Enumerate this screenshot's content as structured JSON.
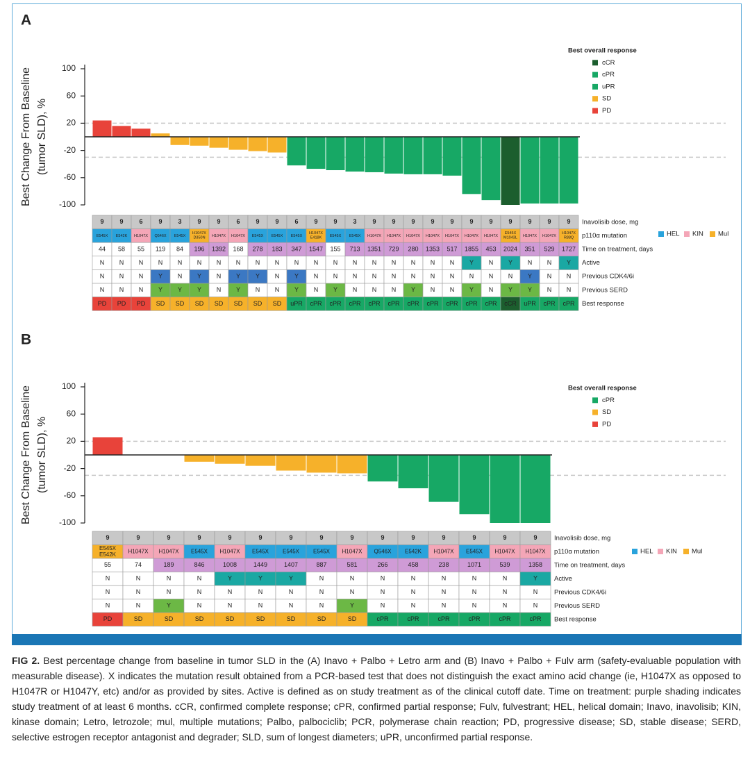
{
  "chart_data": [
    {
      "type": "bar",
      "panel": "A",
      "ylabel": [
        "Best Change From Baseline",
        "(tumor SLD), %"
      ],
      "values": [
        24,
        16,
        12,
        5,
        -12,
        -13,
        -16,
        -19,
        -21,
        -23,
        -42,
        -47,
        -49,
        -51,
        -52,
        -54,
        -55,
        -55,
        -57,
        -84,
        -93,
        -100,
        -98,
        -98,
        -98
      ],
      "ylim": [
        -100,
        100
      ],
      "yticks": [
        100,
        60,
        20,
        -20,
        -60,
        -100
      ],
      "reference_lines": [
        20,
        -30
      ],
      "reference_color": "#c8c8c8",
      "legend": {
        "title": "Best overall response",
        "items": [
          {
            "name": "cCR",
            "color": "#1c5e2e"
          },
          {
            "name": "cPR",
            "color": "#17a865"
          },
          {
            "name": "uPR",
            "color": "#17a865"
          },
          {
            "name": "SD",
            "color": "#f6b12a"
          },
          {
            "name": "PD",
            "color": "#e8433a"
          }
        ]
      },
      "mutation_legend": [
        {
          "name": "HEL",
          "color": "#29a3dc"
        },
        {
          "name": "KIN",
          "color": "#f4a6b7"
        },
        {
          "name": "Mul",
          "color": "#f6b12a"
        }
      ],
      "table": {
        "rows": [
          {
            "label": "Inavolisib dose, mg",
            "fill": "#c8c8c8",
            "cells": [
              9,
              9,
              6,
              9,
              3,
              9,
              9,
              6,
              9,
              9,
              6,
              9,
              9,
              3,
              9,
              9,
              9,
              9,
              9,
              9,
              9,
              9,
              9,
              9,
              9
            ]
          },
          {
            "label": "p110α mutation",
            "cells": [
              "E545X",
              "E542K",
              "H1047X",
              "Q546X",
              "E545X",
              "H1047X D350N",
              "H1047X",
              "H1047X",
              "E545X",
              "E545X",
              "E545X",
              "H1047X E418K",
              "E545X",
              "E545X",
              "H1047X",
              "H1047X",
              "H1047X",
              "H1047X",
              "H1047X",
              "H1047X",
              "H1047X",
              "E545X M1043L",
              "H1047X",
              "H1047X",
              "H1047X R88Q"
            ],
            "colors": [
              "#29a3dc",
              "#29a3dc",
              "#f4a6b7",
              "#29a3dc",
              "#29a3dc",
              "#f6b12a",
              "#f4a6b7",
              "#f4a6b7",
              "#29a3dc",
              "#29a3dc",
              "#29a3dc",
              "#f6b12a",
              "#29a3dc",
              "#29a3dc",
              "#f4a6b7",
              "#f4a6b7",
              "#f4a6b7",
              "#f4a6b7",
              "#f4a6b7",
              "#f4a6b7",
              "#f4a6b7",
              "#f6b12a",
              "#f4a6b7",
              "#f4a6b7",
              "#f6b12a"
            ]
          },
          {
            "label": "Time on treatment, days",
            "cells": [
              44,
              58,
              55,
              119,
              84,
              196,
              1392,
              168,
              278,
              183,
              347,
              1547,
              155,
              713,
              1351,
              729,
              280,
              1353,
              517,
              1855,
              453,
              2024,
              351,
              529,
              1727
            ],
            "colors": [
              "#ffffff",
              "#ffffff",
              "#ffffff",
              "#ffffff",
              "#ffffff",
              "#cf9bd6",
              "#cf9bd6",
              "#ffffff",
              "#cf9bd6",
              "#cf9bd6",
              "#cf9bd6",
              "#cf9bd6",
              "#ffffff",
              "#cf9bd6",
              "#cf9bd6",
              "#cf9bd6",
              "#cf9bd6",
              "#cf9bd6",
              "#cf9bd6",
              "#cf9bd6",
              "#cf9bd6",
              "#cf9bd6",
              "#cf9bd6",
              "#cf9bd6",
              "#cf9bd6"
            ]
          },
          {
            "label": "Active",
            "highlight": "#1aa8a3",
            "cells": [
              "N",
              "N",
              "N",
              "N",
              "N",
              "N",
              "N",
              "N",
              "N",
              "N",
              "N",
              "N",
              "N",
              "N",
              "N",
              "N",
              "N",
              "N",
              "N",
              "Y",
              "N",
              "Y",
              "N",
              "N",
              "Y"
            ]
          },
          {
            "label": "Previous CDK4/6i",
            "highlight": "#3b78c3",
            "cells": [
              "N",
              "N",
              "N",
              "Y",
              "N",
              "Y",
              "N",
              "Y",
              "Y",
              "N",
              "Y",
              "N",
              "N",
              "N",
              "N",
              "N",
              "N",
              "N",
              "N",
              "N",
              "N",
              "N",
              "Y",
              "N",
              "N"
            ]
          },
          {
            "label": "Previous SERD",
            "highlight": "#6cb845",
            "cells": [
              "N",
              "N",
              "N",
              "Y",
              "Y",
              "Y",
              "N",
              "Y",
              "N",
              "N",
              "Y",
              "N",
              "Y",
              "N",
              "N",
              "N",
              "Y",
              "N",
              "N",
              "Y",
              "N",
              "Y",
              "Y",
              "N",
              "N"
            ]
          },
          {
            "label": "Best response",
            "cells": [
              "PD",
              "PD",
              "PD",
              "SD",
              "SD",
              "SD",
              "SD",
              "SD",
              "SD",
              "SD",
              "uPR",
              "cPR",
              "cPR",
              "cPR",
              "cPR",
              "cPR",
              "cPR",
              "cPR",
              "cPR",
              "cPR",
              "cPR",
              "cCR",
              "uPR",
              "cPR",
              "cPR"
            ]
          }
        ]
      }
    },
    {
      "type": "bar",
      "panel": "B",
      "ylabel": [
        "Best Change From Baseline",
        "(tumor SLD), %"
      ],
      "values": [
        26,
        0,
        0,
        -10,
        -13,
        -16,
        -23,
        -26,
        -27,
        -39,
        -49,
        -69,
        -87,
        -100,
        -100
      ],
      "ylim": [
        -100,
        100
      ],
      "yticks": [
        100,
        60,
        20,
        -20,
        -60,
        -100
      ],
      "reference_lines": [
        20,
        -30
      ],
      "reference_color": "#c8c8c8",
      "legend": {
        "title": "Best overall response",
        "items": [
          {
            "name": "cPR",
            "color": "#17a865"
          },
          {
            "name": "SD",
            "color": "#f6b12a"
          },
          {
            "name": "PD",
            "color": "#e8433a"
          }
        ]
      },
      "mutation_legend": [
        {
          "name": "HEL",
          "color": "#29a3dc"
        },
        {
          "name": "KIN",
          "color": "#f4a6b7"
        },
        {
          "name": "Mul",
          "color": "#f6b12a"
        }
      ],
      "table": {
        "rows": [
          {
            "label": "Inavolisib dose, mg",
            "fill": "#c8c8c8",
            "cells": [
              9,
              9,
              9,
              9,
              9,
              9,
              9,
              9,
              9,
              9,
              9,
              9,
              9,
              9,
              9
            ]
          },
          {
            "label": "p110α mutation",
            "cells": [
              "E545X E542K",
              "H1047X",
              "H1047X",
              "E545X",
              "H1047X",
              "E545X",
              "E545X",
              "E545X",
              "H1047X",
              "Q546X",
              "E542K",
              "H1047X",
              "E545X",
              "H1047X",
              "H1047X"
            ],
            "colors": [
              "#f6b12a",
              "#f4a6b7",
              "#f4a6b7",
              "#29a3dc",
              "#f4a6b7",
              "#29a3dc",
              "#29a3dc",
              "#29a3dc",
              "#f4a6b7",
              "#29a3dc",
              "#29a3dc",
              "#f4a6b7",
              "#29a3dc",
              "#f4a6b7",
              "#f4a6b7"
            ]
          },
          {
            "label": "Time on treatment, days",
            "cells": [
              55,
              74,
              189,
              846,
              1008,
              1449,
              1407,
              887,
              581,
              266,
              458,
              238,
              1071,
              539,
              1358
            ],
            "colors": [
              "#ffffff",
              "#ffffff",
              "#cf9bd6",
              "#cf9bd6",
              "#cf9bd6",
              "#cf9bd6",
              "#cf9bd6",
              "#cf9bd6",
              "#cf9bd6",
              "#cf9bd6",
              "#cf9bd6",
              "#cf9bd6",
              "#cf9bd6",
              "#cf9bd6",
              "#cf9bd6"
            ]
          },
          {
            "label": "Active",
            "highlight": "#1aa8a3",
            "cells": [
              "N",
              "N",
              "N",
              "N",
              "Y",
              "Y",
              "Y",
              "N",
              "N",
              "N",
              "N",
              "N",
              "N",
              "N",
              "Y"
            ]
          },
          {
            "label": "Previous CDK4/6i",
            "highlight": "#3b78c3",
            "cells": [
              "N",
              "N",
              "N",
              "N",
              "N",
              "N",
              "N",
              "N",
              "N",
              "N",
              "N",
              "N",
              "N",
              "N",
              "N"
            ]
          },
          {
            "label": "Previous SERD",
            "highlight": "#6cb845",
            "cells": [
              "N",
              "N",
              "Y",
              "N",
              "N",
              "N",
              "N",
              "N",
              "Y",
              "N",
              "N",
              "N",
              "N",
              "N",
              "N"
            ]
          },
          {
            "label": "Best response",
            "cells": [
              "PD",
              "SD",
              "SD",
              "SD",
              "SD",
              "SD",
              "SD",
              "SD",
              "SD",
              "cPR",
              "cPR",
              "cPR",
              "cPR",
              "cPR",
              "cPR"
            ]
          }
        ]
      }
    }
  ],
  "caption": {
    "label": "FIG 2.",
    "text": "Best percentage change from baseline in tumor SLD in the (A) Inavo + Palbo + Letro arm and (B) Inavo + Palbo + Fulv arm (safety-evaluable population with measurable disease). X indicates the mutation result obtained from a PCR-based test that does not distinguish the exact amino acid change (ie, H1047X as opposed to H1047R or H1047Y, etc) and/or as provided by sites. Active is defined as on study treatment as of the clinical cutoff date. Time on treatment: purple shading indicates study treatment of at least 6 months. cCR, confirmed complete response; cPR, confirmed partial response; Fulv, fulvestrant; HEL, helical domain; Inavo, inavolisib; KIN, kinase domain; Letro, letrozole; mul, multiple mutations; Palbo, palbociclib; PCR, polymerase chain reaction; PD, progressive disease; SD, stable disease; SERD, selective estrogen receptor antagonist and degrader; SLD, sum of longest diameters; uPR, unconfirmed partial response."
  }
}
